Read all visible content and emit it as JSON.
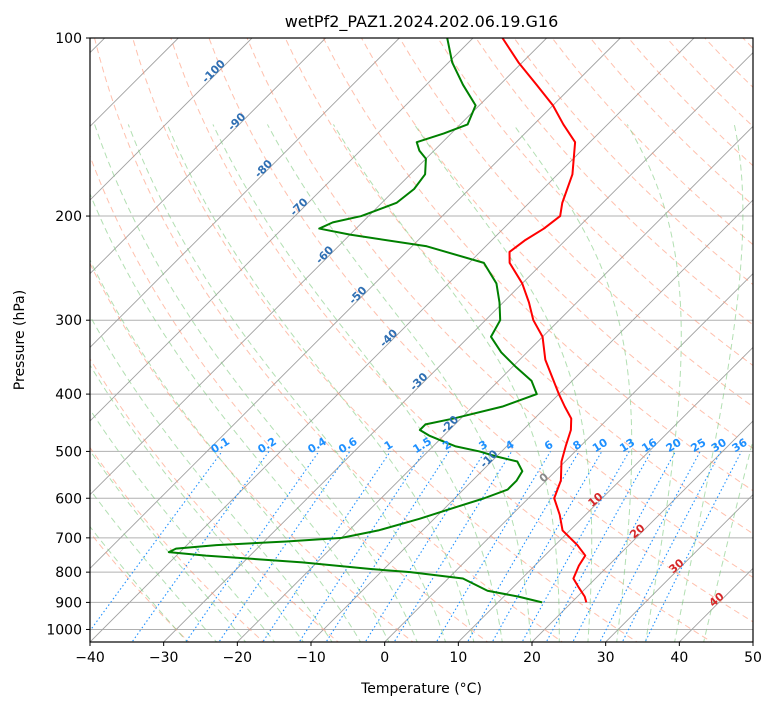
{
  "chart_data": {
    "type": "line",
    "title": "wetPf2_PAZ1.2024.202.06.19.G16",
    "xlabel": "Temperature (°C)",
    "ylabel": "Pressure (hPa)",
    "xlim": [
      -40,
      50
    ],
    "ylim": [
      1050,
      100
    ],
    "y_scale": "log",
    "skew": "skew-T log-p",
    "x_ticks": [
      "−40",
      "−30",
      "−20",
      "−10",
      "0",
      "10",
      "20",
      "30",
      "40",
      "50"
    ],
    "y_ticks": [
      "100",
      "200",
      "300",
      "400",
      "500",
      "600",
      "700",
      "800",
      "900",
      "1000"
    ],
    "grid": true,
    "series": [
      {
        "role": "temperature",
        "color": "#ff0000",
        "points": [
          [
            900,
            22.0
          ],
          [
            880,
            21.0
          ],
          [
            850,
            19.0
          ],
          [
            820,
            17.0
          ],
          [
            780,
            16.0
          ],
          [
            750,
            15.5
          ],
          [
            720,
            13.0
          ],
          [
            680,
            9.0
          ],
          [
            640,
            6.5
          ],
          [
            600,
            3.5
          ],
          [
            560,
            2.0
          ],
          [
            520,
            -0.5
          ],
          [
            490,
            -2.0
          ],
          [
            460,
            -3.5
          ],
          [
            440,
            -5.0
          ],
          [
            420,
            -7.5
          ],
          [
            400,
            -10.0
          ],
          [
            380,
            -12.5
          ],
          [
            350,
            -16.5
          ],
          [
            320,
            -20.0
          ],
          [
            300,
            -23.5
          ],
          [
            280,
            -26.5
          ],
          [
            260,
            -30.0
          ],
          [
            240,
            -34.5
          ],
          [
            230,
            -36.0
          ],
          [
            220,
            -35.5
          ],
          [
            210,
            -34.5
          ],
          [
            200,
            -34.0
          ],
          [
            190,
            -35.5
          ],
          [
            170,
            -38.0
          ],
          [
            150,
            -42.0
          ],
          [
            140,
            -46.0
          ],
          [
            130,
            -50.0
          ],
          [
            120,
            -55.0
          ],
          [
            110,
            -60.5
          ],
          [
            100,
            -66.0
          ]
        ]
      },
      {
        "role": "dewpoint",
        "color": "#008000",
        "points": [
          [
            900,
            16.0
          ],
          [
            880,
            12.0
          ],
          [
            860,
            7.0
          ],
          [
            820,
            2.0
          ],
          [
            800,
            -6.0
          ],
          [
            790,
            -12.0
          ],
          [
            770,
            -22.0
          ],
          [
            750,
            -36.0
          ],
          [
            740,
            -41.5
          ],
          [
            730,
            -41.0
          ],
          [
            720,
            -36.0
          ],
          [
            710,
            -27.0
          ],
          [
            700,
            -20.0
          ],
          [
            680,
            -16.0
          ],
          [
            650,
            -12.0
          ],
          [
            620,
            -8.5
          ],
          [
            600,
            -6.0
          ],
          [
            580,
            -4.0
          ],
          [
            560,
            -4.0
          ],
          [
            540,
            -4.5
          ],
          [
            520,
            -6.5
          ],
          [
            510,
            -10.0
          ],
          [
            500,
            -13.0
          ],
          [
            490,
            -17.0
          ],
          [
            480,
            -19.5
          ],
          [
            470,
            -22.0
          ],
          [
            460,
            -24.0
          ],
          [
            450,
            -24.0
          ],
          [
            440,
            -21.0
          ],
          [
            420,
            -16.0
          ],
          [
            400,
            -13.0
          ],
          [
            380,
            -15.5
          ],
          [
            360,
            -19.5
          ],
          [
            340,
            -23.5
          ],
          [
            320,
            -27.0
          ],
          [
            300,
            -28.0
          ],
          [
            280,
            -30.5
          ],
          [
            260,
            -33.5
          ],
          [
            240,
            -38.0
          ],
          [
            225,
            -48.0
          ],
          [
            215,
            -60.0
          ],
          [
            210,
            -65.0
          ],
          [
            205,
            -64.0
          ],
          [
            200,
            -61.0
          ],
          [
            190,
            -58.0
          ],
          [
            180,
            -57.5
          ],
          [
            170,
            -58.0
          ],
          [
            160,
            -60.0
          ],
          [
            155,
            -62.0
          ],
          [
            150,
            -63.5
          ],
          [
            145,
            -61.0
          ],
          [
            140,
            -59.0
          ],
          [
            130,
            -60.5
          ],
          [
            120,
            -65.0
          ],
          [
            110,
            -69.5
          ],
          [
            100,
            -73.5
          ]
        ]
      }
    ],
    "dry_adiabat_labels": [
      "-100",
      "-90",
      "-80",
      "-70",
      "-60",
      "-50",
      "-40",
      "-30",
      "-20",
      "-10"
    ],
    "moist_adiabat_labels": [
      "0",
      "10",
      "20",
      "30",
      "40"
    ],
    "mixing_ratio_labels": [
      "0.1",
      "0.2",
      "0.4",
      "0.6",
      "1",
      "1.5",
      "2",
      "3",
      "4",
      "6",
      "8",
      "10",
      "13",
      "16",
      "20",
      "25",
      "30",
      "36"
    ]
  },
  "colors": {
    "temperature": "#ff0000",
    "dewpoint": "#008000",
    "dry_adiabat": "#ff8c69",
    "moist_adiabat": "#7fc97f",
    "mixing_ratio": "#1e90ff",
    "dry_adiabat_label": "#2f6fb3",
    "moist_adiabat_label": "#d62728",
    "grid": "#b0b0b0",
    "isotherm": "#a0a0a0"
  }
}
